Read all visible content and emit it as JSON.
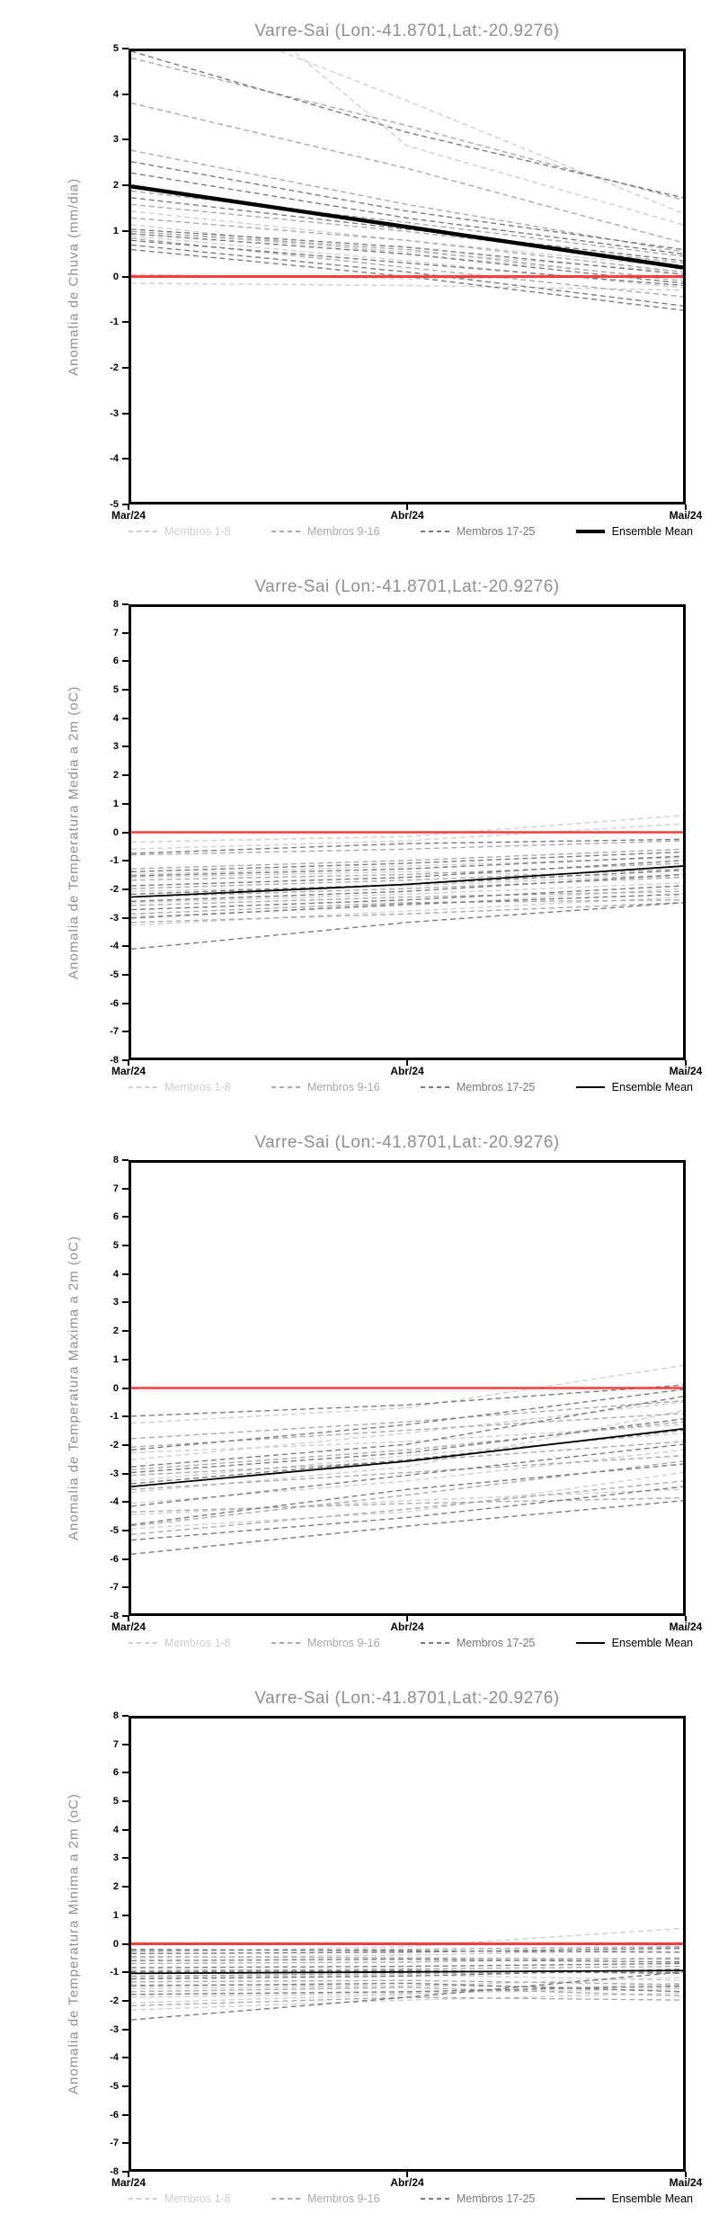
{
  "page": {
    "background": "#ffffff",
    "n_charts": 4
  },
  "chart_data": [
    {
      "type": "line",
      "title": "Varre-Sai (Lon:-41.8701,Lat:-20.9276)",
      "ylabel": "Anomalia de Chuva (mm/dia)",
      "xlabel": "",
      "categories": [
        "Mar/24",
        "Abr/24",
        "Mai/24"
      ],
      "ylim": [
        -5,
        5
      ],
      "ytick_step": 1,
      "grid": false,
      "legend_position": "bottom",
      "climatology_line": {
        "color": "#fa3c3c",
        "width": 3,
        "values": [
          0,
          0,
          0
        ]
      },
      "mean": {
        "label": "Ensemble Mean",
        "color": "#000000",
        "width": 4.5,
        "values": [
          2.0,
          1.1,
          0.2
        ]
      },
      "groups": [
        {
          "name": "Membros 1-8",
          "color": "#cecece",
          "members": [
            [
              6.3,
              3.9,
              1.4
            ],
            [
              8.0,
              2.9,
              1.15
            ],
            [
              1.45,
              0.8,
              0.2
            ],
            [
              1.15,
              0.5,
              -0.05
            ],
            [
              1.0,
              0.55,
              0.1
            ],
            [
              0.9,
              0.35,
              -0.25
            ],
            [
              0.05,
              -0.05,
              0.0
            ],
            [
              -0.15,
              -0.2,
              -0.3
            ]
          ]
        },
        {
          "name": "Membros 9-16",
          "color": "#a9a9a9",
          "members": [
            [
              4.85,
              3.35,
              1.7
            ],
            [
              3.85,
              2.4,
              0.75
            ],
            [
              2.8,
              1.6,
              0.55
            ],
            [
              1.9,
              1.2,
              0.45
            ],
            [
              1.6,
              1.0,
              0.3
            ],
            [
              1.3,
              0.8,
              0.1
            ],
            [
              1.0,
              0.6,
              -0.1
            ],
            [
              0.85,
              0.2,
              -0.45
            ]
          ]
        },
        {
          "name": "Membros 17-25",
          "color": "#7a7a7a",
          "members": [
            [
              5.0,
              3.2,
              1.75
            ],
            [
              2.55,
              1.45,
              0.6
            ],
            [
              2.3,
              1.3,
              0.5
            ],
            [
              1.75,
              1.05,
              0.35
            ],
            [
              1.05,
              0.65,
              0.05
            ],
            [
              0.95,
              0.5,
              -0.15
            ],
            [
              0.8,
              0.3,
              -0.2
            ],
            [
              0.7,
              0.1,
              -0.65
            ],
            [
              0.6,
              0.0,
              -0.75
            ]
          ]
        }
      ]
    },
    {
      "type": "line",
      "title": "Varre-Sai (Lon:-41.8701,Lat:-20.9276)",
      "ylabel": "Anomalia de Temperatura Media a 2m (oC)",
      "xlabel": "",
      "categories": [
        "Mar/24",
        "Abr/24",
        "Mai/24"
      ],
      "ylim": [
        -8,
        8
      ],
      "ytick_step": 1,
      "grid": false,
      "legend_position": "bottom",
      "climatology_line": {
        "color": "#fa3c3c",
        "width": 2.5,
        "values": [
          0,
          0,
          0
        ]
      },
      "mean": {
        "label": "Ensemble Mean",
        "color": "#000000",
        "width": 1.8,
        "values": [
          -2.3,
          -1.85,
          -1.2
        ]
      },
      "groups": [
        {
          "name": "Membros 1-8",
          "color": "#cecece",
          "members": [
            [
              -0.35,
              -0.15,
              0.6
            ],
            [
              -0.6,
              -0.3,
              0.3
            ],
            [
              -1.5,
              -1.2,
              -0.9
            ],
            [
              -1.6,
              -1.4,
              -1.6
            ],
            [
              -2.1,
              -1.9,
              -1.5
            ],
            [
              -2.5,
              -2.2,
              -1.8
            ],
            [
              -3.0,
              -2.6,
              -2.0
            ],
            [
              -3.3,
              -2.8,
              -2.3
            ]
          ]
        },
        {
          "name": "Membros 9-16",
          "color": "#a9a9a9",
          "members": [
            [
              -0.8,
              -0.6,
              -0.3
            ],
            [
              -1.3,
              -1.0,
              -0.6
            ],
            [
              -1.7,
              -1.5,
              -1.1
            ],
            [
              -2.0,
              -1.7,
              -1.3
            ],
            [
              -2.3,
              -2.0,
              -1.6
            ],
            [
              -2.6,
              -2.3,
              -2.1
            ],
            [
              -2.9,
              -2.5,
              -2.4
            ],
            [
              -3.2,
              -2.9,
              -2.5
            ]
          ]
        },
        {
          "name": "Membros 17-25",
          "color": "#7a7a7a",
          "members": [
            [
              -0.75,
              -0.4,
              -0.25
            ],
            [
              -1.4,
              -1.1,
              -0.7
            ],
            [
              -1.55,
              -1.3,
              -0.85
            ],
            [
              -1.9,
              -1.6,
              -1.0
            ],
            [
              -2.2,
              -1.85,
              -1.35
            ],
            [
              -2.45,
              -2.1,
              -1.5
            ],
            [
              -2.75,
              -2.4,
              -1.9
            ],
            [
              -3.05,
              -2.55,
              -2.2
            ],
            [
              -4.15,
              -3.2,
              -2.5
            ]
          ]
        }
      ]
    },
    {
      "type": "line",
      "title": "Varre-Sai (Lon:-41.8701,Lat:-20.9276)",
      "ylabel": "Anomalia de Temperatura Maxima a 2m (oC)",
      "xlabel": "",
      "categories": [
        "Mar/24",
        "Abr/24",
        "Mai/24"
      ],
      "ylim": [
        -8,
        8
      ],
      "ytick_step": 1,
      "grid": false,
      "legend_position": "bottom",
      "climatology_line": {
        "color": "#fa3c3c",
        "width": 2.5,
        "values": [
          0,
          0,
          0
        ]
      },
      "mean": {
        "label": "Ensemble Mean",
        "color": "#000000",
        "width": 1.8,
        "values": [
          -3.5,
          -2.6,
          -1.45
        ]
      },
      "groups": [
        {
          "name": "Membros 1-8",
          "color": "#cecece",
          "members": [
            [
              -1.25,
              -0.7,
              0.8
            ],
            [
              -2.55,
              -1.6,
              -0.5
            ],
            [
              -3.3,
              -2.4,
              -1.6
            ],
            [
              -3.7,
              -2.8,
              -0.8
            ],
            [
              -4.1,
              -3.3,
              -2.2
            ],
            [
              -5.0,
              -4.4,
              -3.0
            ],
            [
              -4.5,
              -4.0,
              -3.6
            ],
            [
              -2.3,
              -1.9,
              -1.3
            ]
          ]
        },
        {
          "name": "Membros 9-16",
          "color": "#a9a9a9",
          "members": [
            [
              -1.8,
              -1.2,
              -0.45
            ],
            [
              -2.1,
              -1.5,
              -0.9
            ],
            [
              -2.9,
              -2.2,
              -1.2
            ],
            [
              -3.1,
              -2.6,
              -1.9
            ],
            [
              -3.6,
              -3.0,
              -2.4
            ],
            [
              -4.4,
              -4.1,
              -3.9
            ],
            [
              -4.9,
              -3.8,
              -2.6
            ],
            [
              -5.2,
              -4.3,
              -3.3
            ]
          ]
        },
        {
          "name": "Membros 17-25",
          "color": "#7a7a7a",
          "members": [
            [
              -1.0,
              -0.6,
              0.1
            ],
            [
              -2.2,
              -1.3,
              -0.05
            ],
            [
              -2.8,
              -2.0,
              -0.3
            ],
            [
              -3.0,
              -2.3,
              -1.1
            ],
            [
              -3.4,
              -2.55,
              -1.5
            ],
            [
              -4.2,
              -3.1,
              -2.0
            ],
            [
              -4.85,
              -3.6,
              -2.7
            ],
            [
              -5.4,
              -4.6,
              -3.5
            ],
            [
              -5.9,
              -4.9,
              -4.0
            ]
          ]
        }
      ]
    },
    {
      "type": "line",
      "title": "Varre-Sai (Lon:-41.8701,Lat:-20.9276)",
      "ylabel": "Anomalia de Temperatura Minima a 2m (oC)",
      "xlabel": "",
      "categories": [
        "Mar/24",
        "Abr/24",
        "Mai/24"
      ],
      "ylim": [
        -8,
        8
      ],
      "ytick_step": 1,
      "grid": false,
      "legend_position": "bottom",
      "climatology_line": {
        "color": "#fa3c3c",
        "width": 3,
        "values": [
          0,
          0,
          0
        ]
      },
      "mean": {
        "label": "Ensemble Mean",
        "color": "#000000",
        "width": 1.8,
        "values": [
          -1.05,
          -1.0,
          -0.95
        ]
      },
      "groups": [
        {
          "name": "Membros 1-8",
          "color": "#cecece",
          "members": [
            [
              -0.3,
              -0.1,
              0.55
            ],
            [
              -0.5,
              -0.4,
              -0.2
            ],
            [
              -1.2,
              -1.1,
              -1.3
            ],
            [
              -1.6,
              -1.5,
              -1.2
            ],
            [
              -1.9,
              -1.75,
              -1.6
            ],
            [
              -2.1,
              -1.8,
              -1.4
            ],
            [
              -2.35,
              -2.0,
              -1.75
            ],
            [
              -1.45,
              -1.5,
              -1.55
            ]
          ]
        },
        {
          "name": "Membros 9-16",
          "color": "#a9a9a9",
          "members": [
            [
              -0.25,
              -0.2,
              -0.1
            ],
            [
              -0.45,
              -0.5,
              -0.55
            ],
            [
              -0.7,
              -0.65,
              -0.5
            ],
            [
              -0.95,
              -0.9,
              -0.8
            ],
            [
              -1.15,
              -1.05,
              -1.0
            ],
            [
              -1.35,
              -1.3,
              -1.45
            ],
            [
              -1.7,
              -1.55,
              -1.85
            ],
            [
              -2.2,
              -1.9,
              -2.0
            ]
          ]
        },
        {
          "name": "Membros 17-25",
          "color": "#7a7a7a",
          "members": [
            [
              -0.2,
              -0.25,
              -0.3
            ],
            [
              -0.35,
              -0.3,
              -0.15
            ],
            [
              -0.6,
              -0.55,
              -0.65
            ],
            [
              -0.85,
              -0.8,
              -0.7
            ],
            [
              -1.0,
              -0.95,
              -1.05
            ],
            [
              -1.25,
              -1.15,
              -0.9
            ],
            [
              -1.5,
              -1.4,
              -1.7
            ],
            [
              -1.8,
              -1.7,
              -1.5
            ],
            [
              -2.7,
              -1.9,
              -1.0
            ]
          ]
        }
      ]
    }
  ]
}
